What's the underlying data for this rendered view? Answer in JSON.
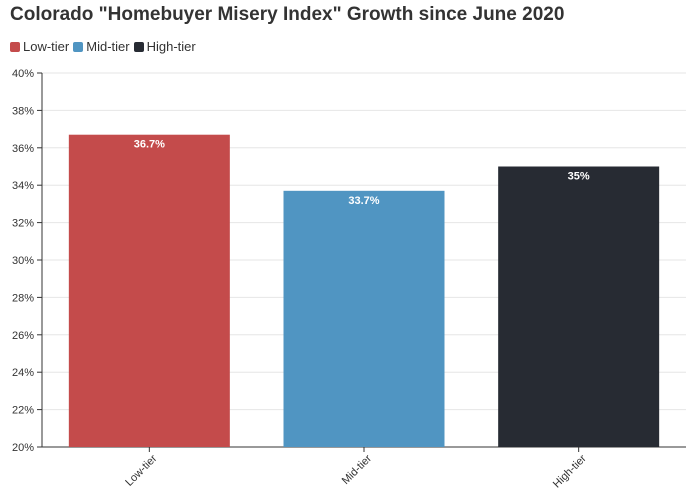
{
  "chart_data": {
    "type": "bar",
    "title": "Colorado \"Homebuyer Misery Index\" Growth since June 2020",
    "categories": [
      "Low-tier",
      "Mid-tier",
      "High-tier"
    ],
    "values": [
      36.7,
      33.7,
      35.0
    ],
    "data_labels": [
      "36.7%",
      "33.7%",
      "35%"
    ],
    "colors": [
      "#c44b4b",
      "#5095c2",
      "#272b33"
    ],
    "legend": {
      "position": "top-left",
      "entries": [
        {
          "label": "Low-tier",
          "color": "#c44b4b"
        },
        {
          "label": "Mid-tier",
          "color": "#5095c2"
        },
        {
          "label": "High-tier",
          "color": "#272b33"
        }
      ]
    },
    "ylim": [
      20,
      40
    ],
    "y_ticks": [
      20,
      22,
      24,
      26,
      28,
      30,
      32,
      34,
      36,
      38,
      40
    ],
    "y_tick_labels": [
      "20%",
      "22%",
      "24%",
      "26%",
      "28%",
      "30%",
      "32%",
      "34%",
      "36%",
      "38%",
      "40%"
    ],
    "grid": true,
    "xlabel": "",
    "ylabel": ""
  }
}
